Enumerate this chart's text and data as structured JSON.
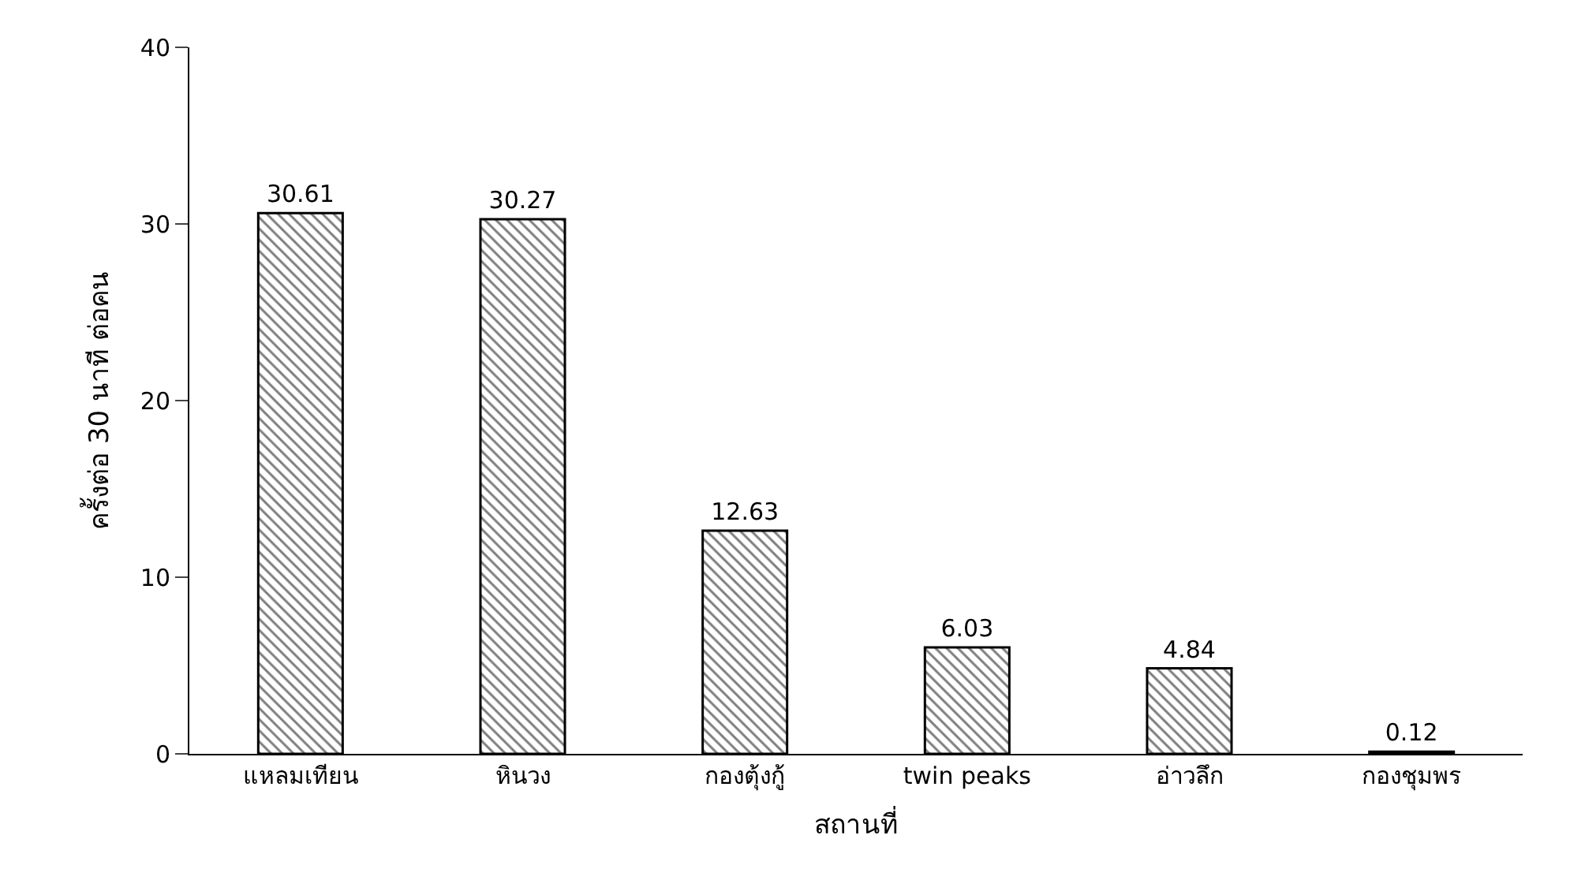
{
  "chart_data": {
    "type": "bar",
    "xlabel": "สถานที่",
    "ylabel": "ครั้งต่อ 30 นาที ต่อคน",
    "categories": [
      "แหลมเทียน",
      "หินวง",
      "กองตุ้งกู้",
      "twin peaks",
      "อ่าวลึก",
      "กองชุมพร"
    ],
    "values": [
      30.61,
      30.27,
      12.63,
      6.03,
      4.84,
      0.12
    ],
    "color": "#000000",
    "ylim": [
      0,
      40
    ],
    "yticks": [
      0,
      10,
      20,
      30,
      40
    ],
    "data_labels": true,
    "legend": false
  }
}
